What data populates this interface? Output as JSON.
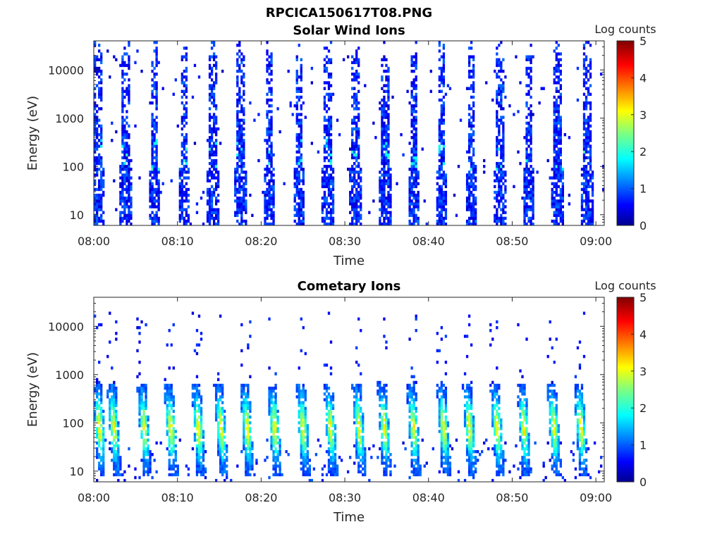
{
  "figure_title": "RPCICA150617T08.PNG",
  "chart_data": [
    {
      "type": "heatmap",
      "title": "Solar Wind Ions",
      "xlabel": "Time",
      "ylabel": "Energy (eV)",
      "x_range": [
        "08:00",
        "09:01"
      ],
      "x_ticks": [
        "08:00",
        "08:10",
        "08:20",
        "08:30",
        "08:40",
        "08:50",
        "09:00"
      ],
      "y_scale": "log",
      "y_range": [
        6,
        40000
      ],
      "y_ticks": [
        "10",
        "100",
        "1000",
        "10000"
      ],
      "colorbar": {
        "label": "Log counts",
        "range": [
          0,
          5
        ],
        "ticks": [
          "0",
          "1",
          "2",
          "3",
          "4",
          "5"
        ],
        "colormap": "jet"
      },
      "pattern": "periodic vertical bursts every ~3.3 min, mostly 0-1 log counts, spanning 6 eV to ~30000 eV; brief cyan peaks (~2) near 100-300 eV",
      "burst_minutes": [
        0.5,
        3.8,
        7.3,
        10.8,
        14.2,
        17.5,
        21.0,
        24.5,
        28.0,
        31.3,
        34.8,
        38.3,
        41.6,
        45.1,
        48.6,
        52.0,
        55.4,
        59.0
      ],
      "grid": false
    },
    {
      "type": "heatmap",
      "title": "Cometary Ions",
      "xlabel": "Time",
      "ylabel": "Energy (eV)",
      "x_range": [
        "08:00",
        "09:01"
      ],
      "x_ticks": [
        "08:00",
        "08:10",
        "08:20",
        "08:30",
        "08:40",
        "08:50",
        "09:00"
      ],
      "y_scale": "log",
      "y_range": [
        6,
        40000
      ],
      "y_ticks": [
        "10",
        "100",
        "1000",
        "10000"
      ],
      "colorbar": {
        "label": "Log counts",
        "range": [
          0,
          5
        ],
        "ticks": [
          "0",
          "1",
          "2",
          "3",
          "4",
          "5"
        ],
        "colormap": "jet"
      },
      "pattern": "periodic slanted plumes every ~3.3 min between ~10 and ~500 eV, peaking ~2.5-3 log counts near 50-200 eV; sparse points up to ~20000 eV",
      "burst_minutes": [
        0.5,
        2.2,
        5.8,
        9.0,
        12.3,
        15.0,
        18.1,
        21.4,
        24.8,
        28.1,
        31.5,
        34.5,
        38.0,
        41.6,
        44.7,
        48.0,
        51.2,
        54.8,
        58.0
      ],
      "grid": false
    }
  ]
}
